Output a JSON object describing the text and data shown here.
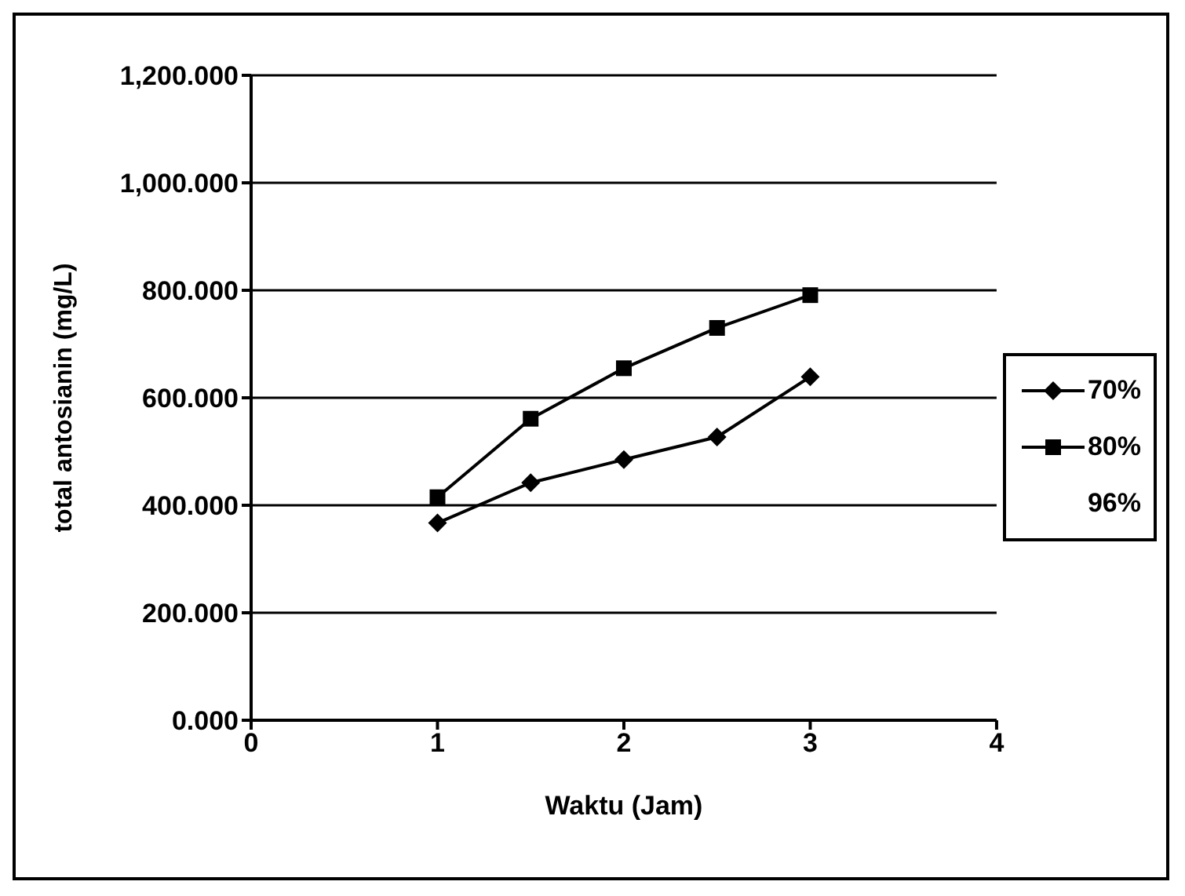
{
  "chart_data": {
    "type": "line",
    "xlabel": "Waktu (Jam)",
    "ylabel": "total antosianin (mg/L)",
    "x": [
      1,
      1.5,
      2,
      2.5,
      3
    ],
    "series": [
      {
        "name": "70%",
        "color": "#000000",
        "marker": "diamond",
        "values": [
          367,
          442,
          485,
          527,
          639
        ]
      },
      {
        "name": "80%",
        "color": "#000000",
        "marker": "square",
        "values": [
          415,
          561,
          655,
          730,
          791
        ]
      },
      {
        "name": "96%",
        "color": "#000000",
        "marker": "none",
        "values": [
          null,
          null,
          null,
          null,
          null
        ]
      }
    ],
    "xlim": [
      0,
      4
    ],
    "xticks": [
      0,
      1,
      2,
      3,
      4
    ],
    "ylim": [
      0,
      1200
    ],
    "yticks": [
      {
        "value": 0,
        "label": "0.000"
      },
      {
        "value": 200,
        "label": "200.000"
      },
      {
        "value": 400,
        "label": "400.000"
      },
      {
        "value": 600,
        "label": "600.000"
      },
      {
        "value": 800,
        "label": "800.000"
      },
      {
        "value": 1000,
        "label": "1,000.000"
      },
      {
        "value": 1200,
        "label": "1,200.000"
      }
    ],
    "grid": "y",
    "legend": "right",
    "line_style": "solid"
  }
}
